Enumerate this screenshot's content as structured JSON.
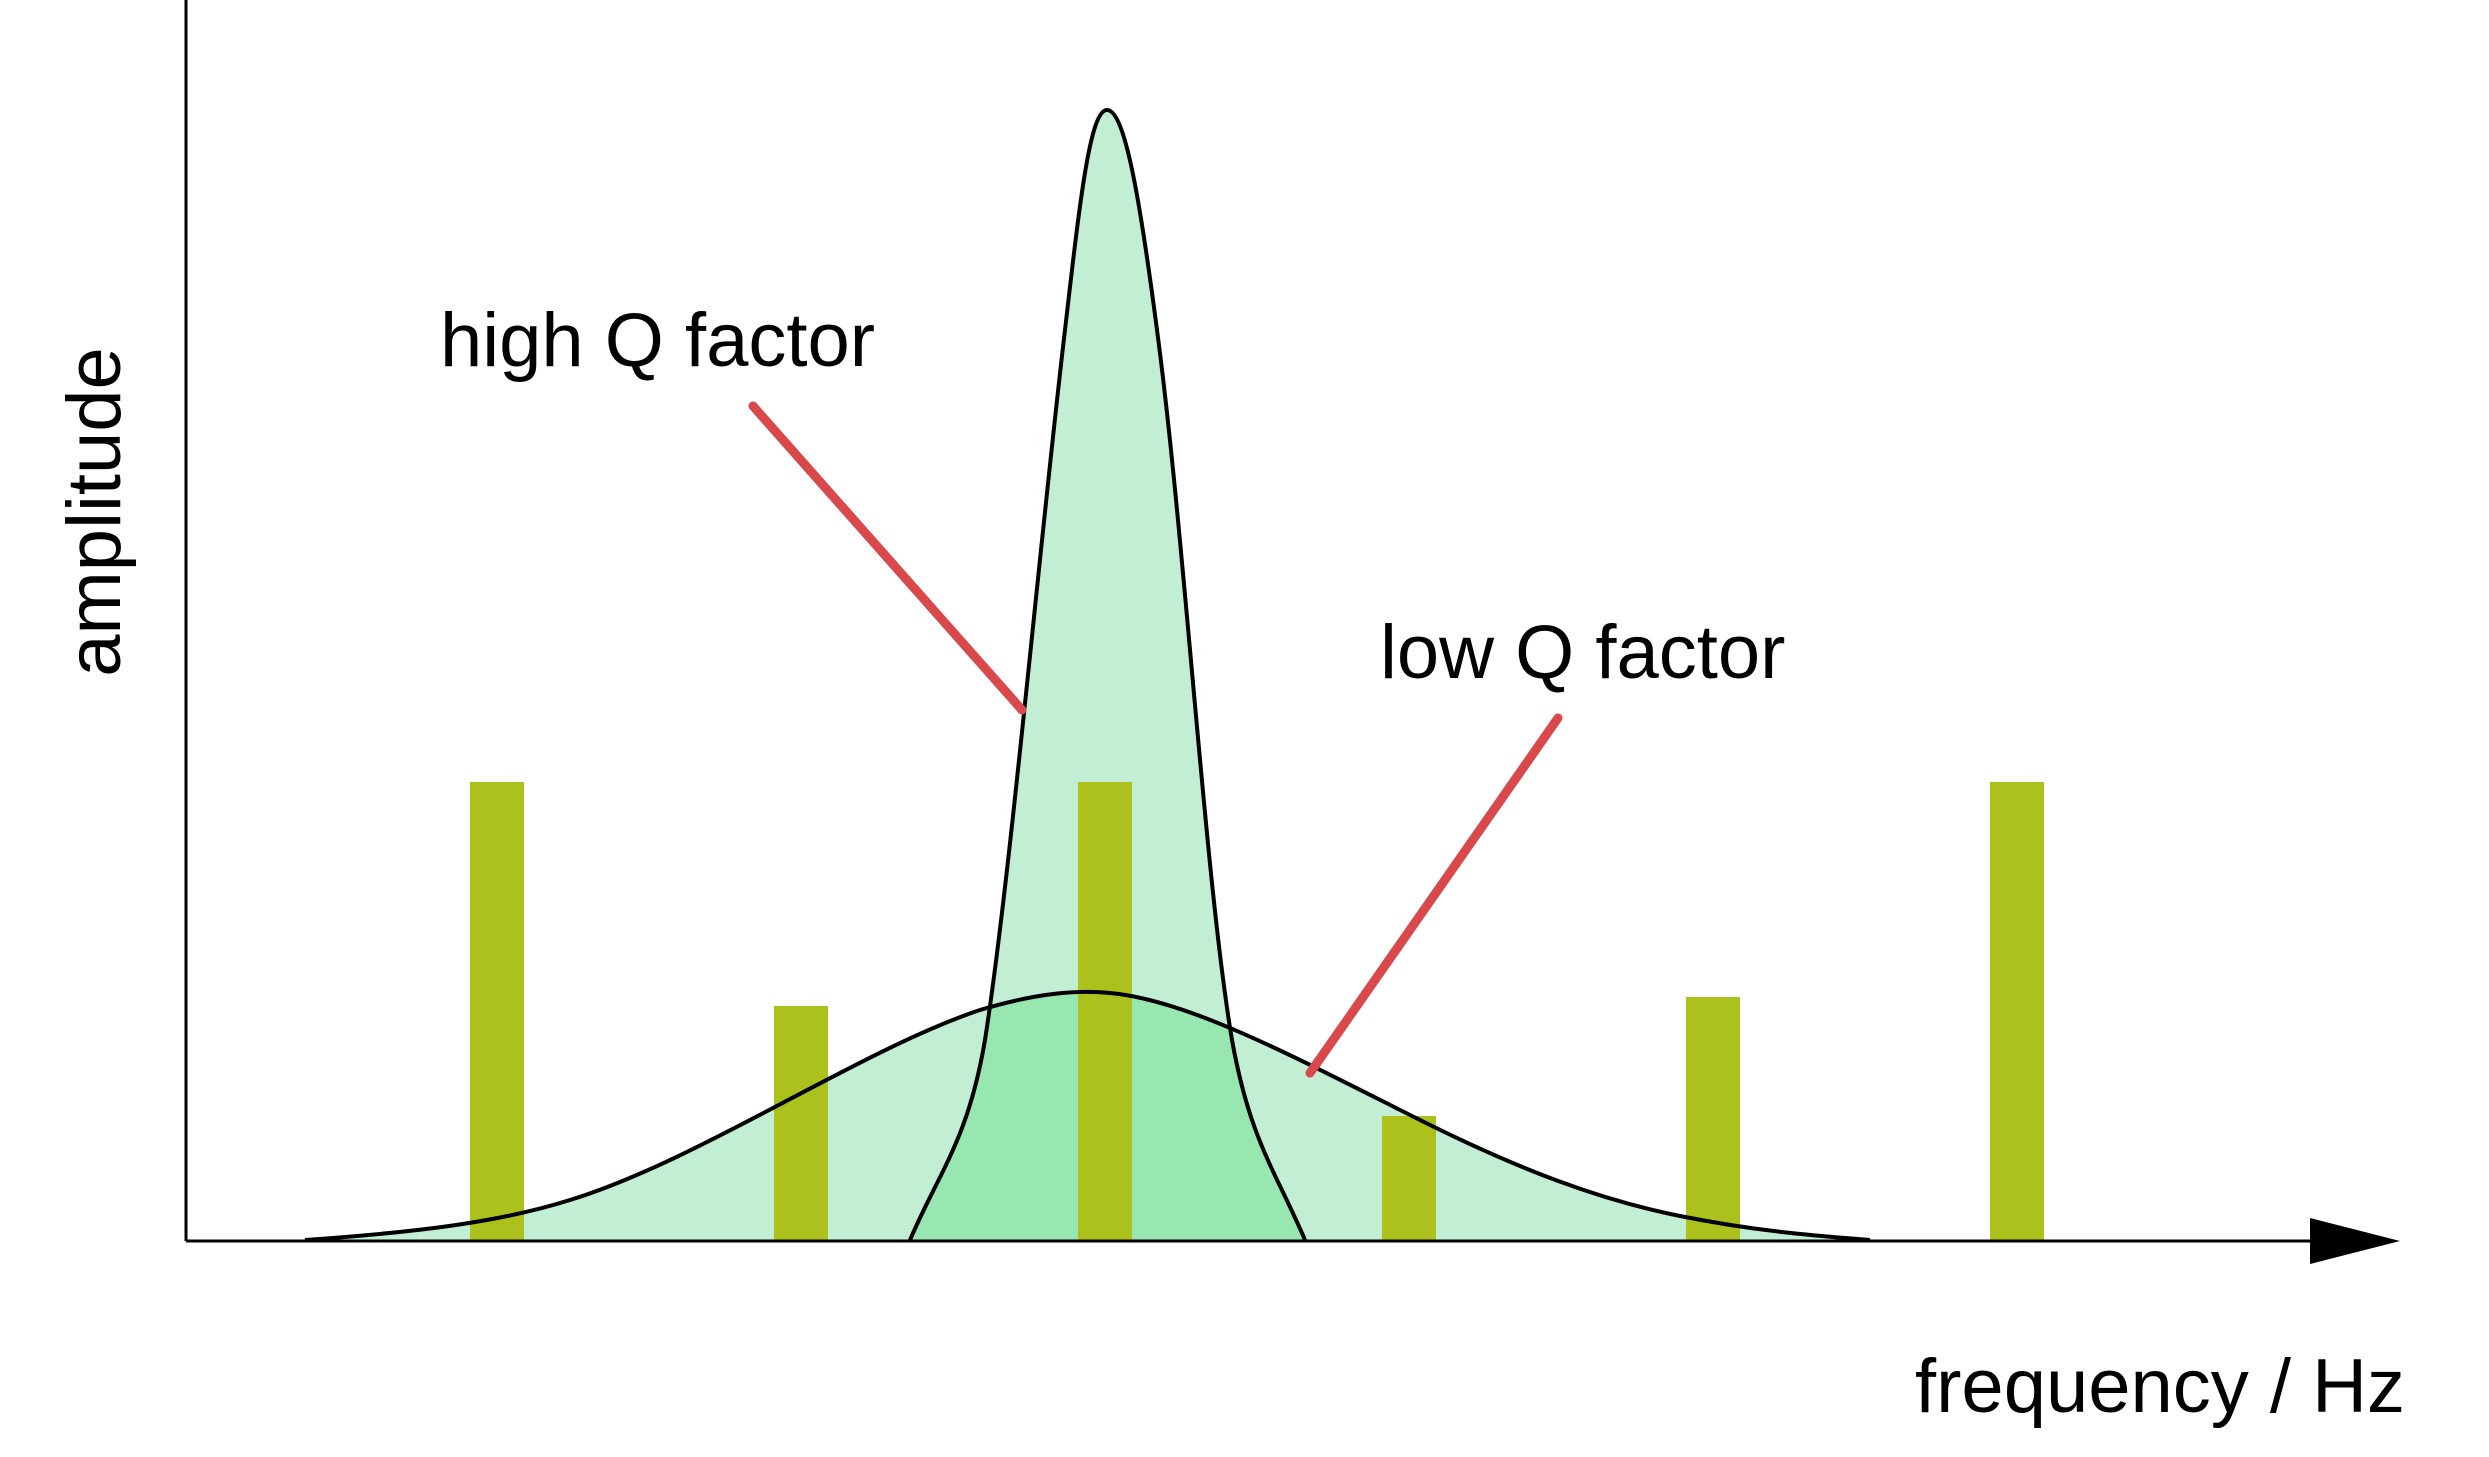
{
  "axes": {
    "x_label": "frequency / Hz",
    "y_label": "amplitude"
  },
  "annotations": {
    "high_q": "high Q factor",
    "low_q": "low Q factor"
  },
  "colors": {
    "bar": "#adc11c",
    "curve_fill": "#c2efd4",
    "overlap_fill": "#98e6b0",
    "curve_stroke": "#000000",
    "pointer": "#d9484a",
    "axis": "#000000"
  },
  "bars": {
    "count": 6,
    "relative_heights": [
      1.0,
      0.51,
      1.0,
      0.27,
      0.53,
      1.0
    ]
  }
}
